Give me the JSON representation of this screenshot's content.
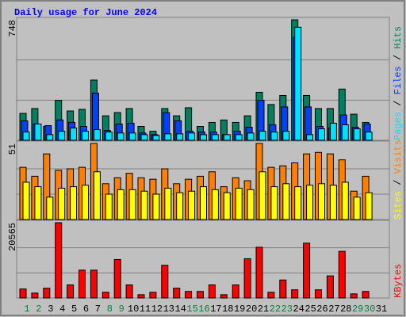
{
  "chart_data": [
    {
      "type": "bar",
      "title": "Daily usage for June 2024",
      "categories": [
        "1",
        "2",
        "3",
        "4",
        "5",
        "6",
        "7",
        "8",
        "9",
        "10",
        "11",
        "12",
        "13",
        "14",
        "15",
        "16",
        "17",
        "18",
        "19",
        "20",
        "21",
        "22",
        "23",
        "24",
        "25",
        "26",
        "27",
        "28",
        "29",
        "30",
        "31"
      ],
      "category_colors": [
        "#008040",
        "#008040",
        "#000000",
        "#000000",
        "#000000",
        "#000000",
        "#000000",
        "#008040",
        "#008040",
        "#000000",
        "#000000",
        "#000000",
        "#000000",
        "#000000",
        "#008040",
        "#008040",
        "#000000",
        "#000000",
        "#000000",
        "#000000",
        "#000000",
        "#008040",
        "#008040",
        "#000000",
        "#000000",
        "#000000",
        "#000000",
        "#000000",
        "#008040",
        "#008040",
        "#000000"
      ],
      "legend_separator": " / ",
      "ylim": [
        0,
        748
      ],
      "yticks": [
        748
      ],
      "series": [
        {
          "name": "Hits",
          "color": "#008060",
          "values": [
            167,
            197,
            86,
            248,
            182,
            192,
            374,
            152,
            172,
            197,
            86,
            56,
            197,
            152,
            202,
            86,
            111,
            126,
            111,
            152,
            298,
            222,
            278,
            748,
            278,
            197,
            197,
            318,
            162,
            111,
            0
          ]
        },
        {
          "name": "Files",
          "color": "#0040ff",
          "values": [
            121,
            101,
            91,
            126,
            111,
            86,
            293,
            61,
            101,
            106,
            45,
            35,
            172,
            121,
            56,
            51,
            51,
            35,
            56,
            81,
            248,
            96,
            207,
            640,
            207,
            86,
            76,
            157,
            81,
            101,
            0
          ]
        },
        {
          "name": "Pages",
          "color": "#00e0ff",
          "values": [
            51,
            101,
            35,
            56,
            76,
            56,
            66,
            51,
            45,
            45,
            35,
            30,
            40,
            40,
            45,
            35,
            35,
            35,
            35,
            45,
            56,
            51,
            56,
            702,
            35,
            71,
            106,
            96,
            71,
            51,
            0
          ]
        }
      ]
    },
    {
      "type": "bar",
      "legend_separator": " / ",
      "ylim": [
        0,
        51
      ],
      "yticks": [
        51
      ],
      "series": [
        {
          "name": "Visits",
          "color": "#ff8000",
          "values": [
            35,
            29,
            44,
            33,
            34,
            35,
            51,
            24,
            28,
            31,
            28,
            27,
            34,
            24,
            27,
            29,
            32,
            22,
            28,
            26,
            51,
            35,
            36,
            38,
            44,
            45,
            44,
            40,
            19,
            29,
            0
          ]
        },
        {
          "name": "Sites",
          "color": "#ffff00",
          "values": [
            25,
            22,
            15,
            21,
            22,
            23,
            32,
            17,
            20,
            20,
            19,
            17,
            21,
            18,
            19,
            22,
            20,
            18,
            21,
            20,
            32,
            22,
            24,
            22,
            23,
            24,
            23,
            25,
            15,
            18,
            0
          ]
        }
      ]
    },
    {
      "type": "bar",
      "ylim": [
        0,
        20565
      ],
      "yticks": [
        20565
      ],
      "series": [
        {
          "name": "KBytes",
          "color": "#ff0000",
          "values": [
            2459,
            1341,
            2682,
            20565,
            3576,
            7600,
            7600,
            1565,
            10505,
            3576,
            894,
            1565,
            8940,
            2682,
            1788,
            1788,
            3576,
            894,
            3576,
            10728,
            13857,
            1565,
            4917,
            2235,
            14975,
            2235,
            6035,
            12740,
            1118,
            1788,
            0
          ]
        }
      ]
    }
  ]
}
